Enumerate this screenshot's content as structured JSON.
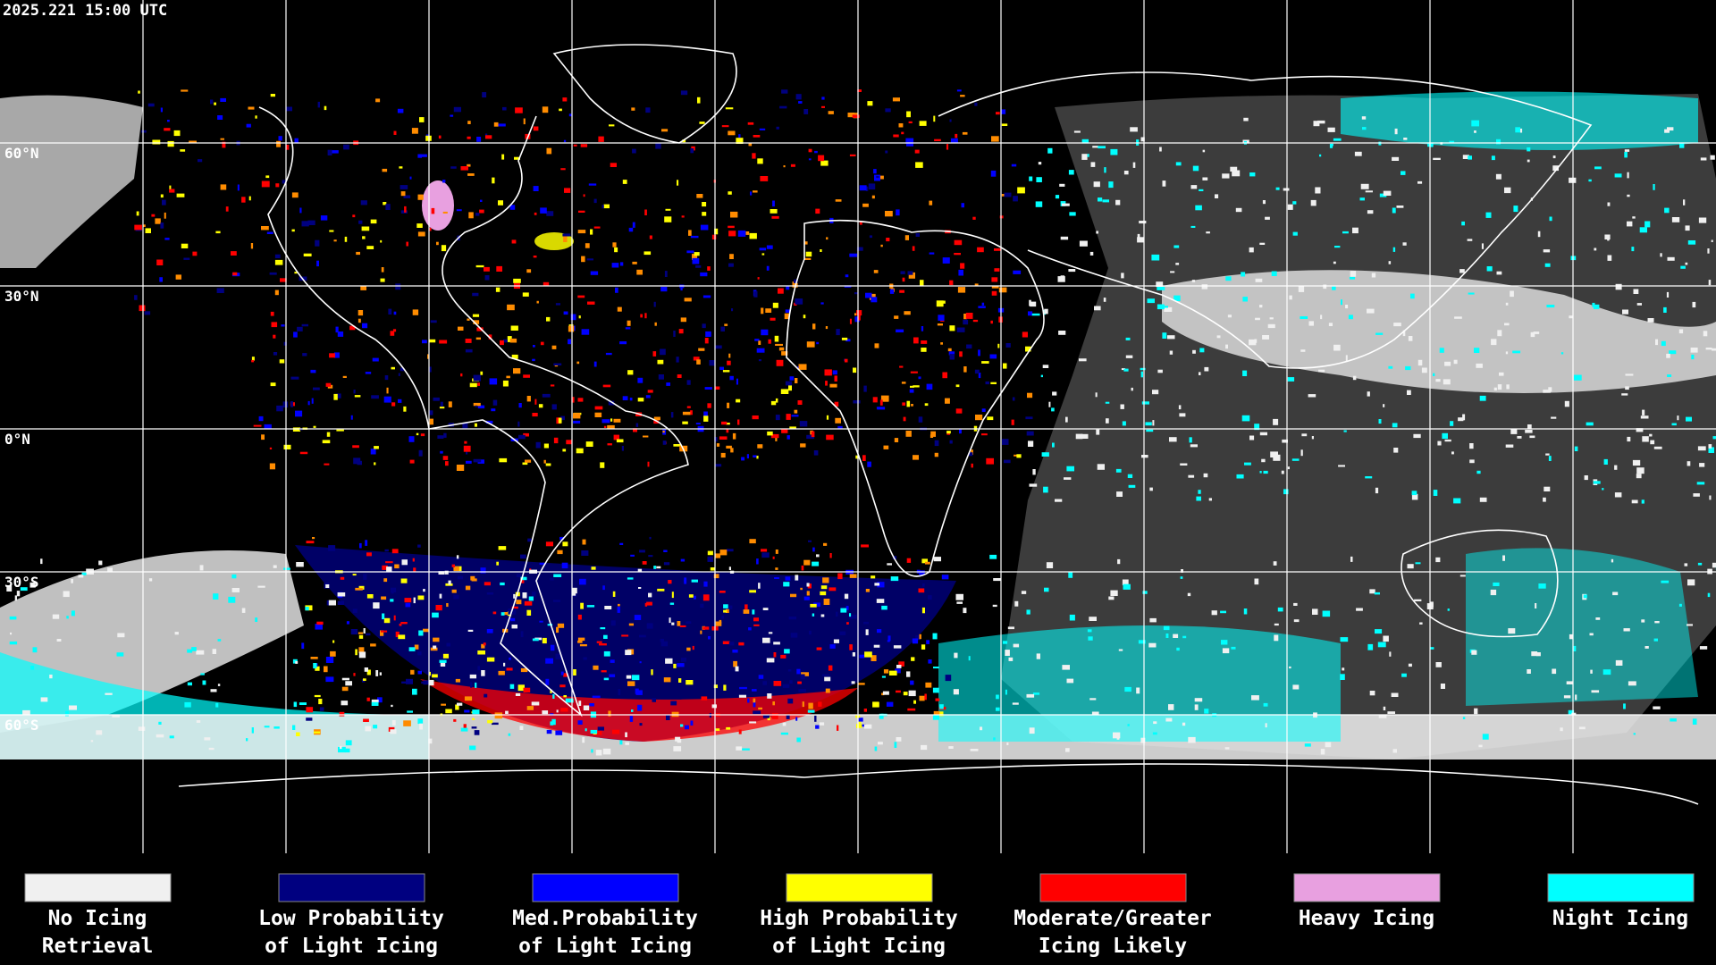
{
  "timestamp": "2025.221 15:00 UTC",
  "latitude_labels": [
    "60°N",
    "30°N",
    "0°N",
    "30°S",
    "60°S"
  ],
  "legend": [
    {
      "label": [
        "No Icing",
        "Retrieval"
      ],
      "color": "#f0f0f0"
    },
    {
      "label": [
        "Low Probability",
        "of Light Icing"
      ],
      "color": "#000080"
    },
    {
      "label": [
        "Med.Probability",
        "of Light Icing"
      ],
      "color": "#0000ff"
    },
    {
      "label": [
        "High Probability",
        "of Light Icing"
      ],
      "color": "#ffff00"
    },
    {
      "label": [
        "Moderate/Greater",
        "Icing Likely"
      ],
      "color": "#ff0000"
    },
    {
      "label": [
        "Heavy Icing"
      ],
      "color": "#e8a0e0"
    },
    {
      "label": [
        "Night Icing"
      ],
      "color": "#00ffff"
    }
  ]
}
